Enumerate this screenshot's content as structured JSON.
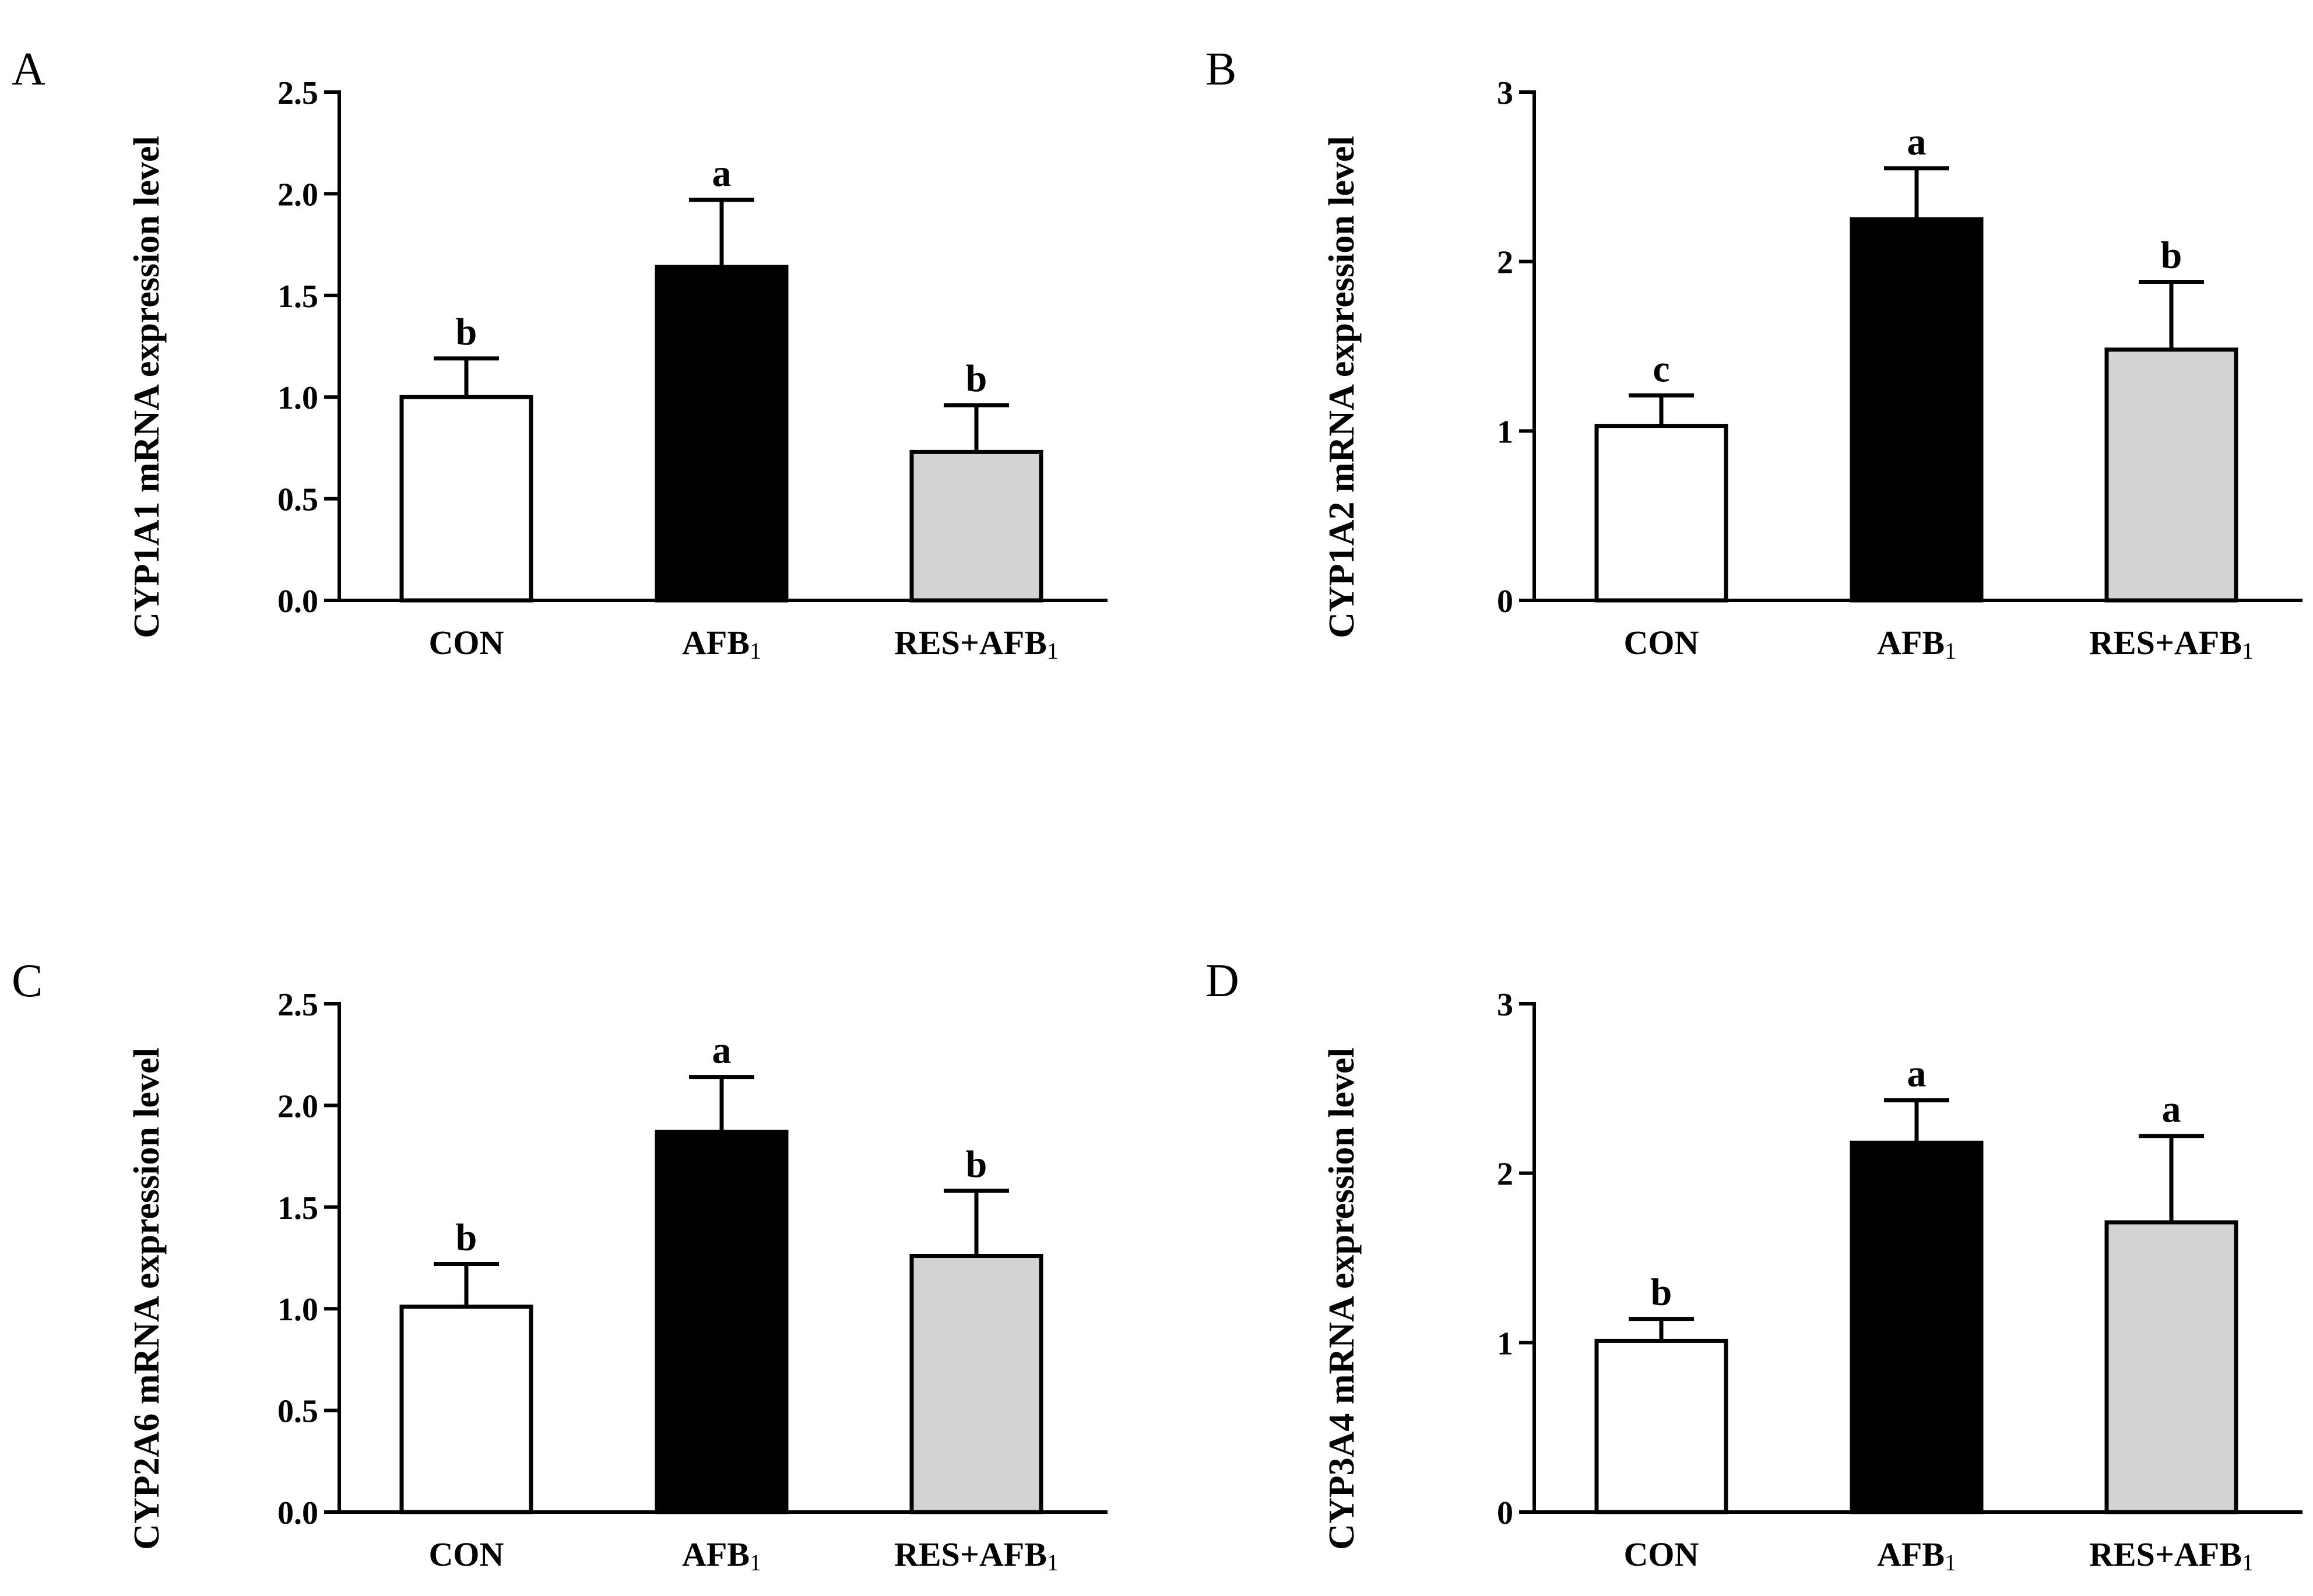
{
  "figure": {
    "panels": [
      "A",
      "B",
      "C",
      "D"
    ]
  },
  "chart_data": [
    {
      "panel": "A",
      "type": "bar",
      "ylabel": "CYP1A1 mRNA expression level",
      "ylim": [
        0,
        2.5
      ],
      "yticks": [
        0.0,
        0.5,
        1.0,
        1.5,
        2.0,
        2.5
      ],
      "ytick_labels": [
        "0.0",
        "0.5",
        "1.0",
        "1.5",
        "2.0",
        "2.5"
      ],
      "categories": [
        {
          "main": "CON",
          "sub": ""
        },
        {
          "main": "AFB",
          "sub": "1"
        },
        {
          "main": "RES+AFB",
          "sub": "1"
        }
      ],
      "values": [
        1.0,
        1.64,
        0.73
      ],
      "errors": [
        0.19,
        0.33,
        0.23
      ],
      "significance": [
        "b",
        "a",
        "b"
      ],
      "colors": [
        "#ffffff",
        "#000000",
        "#d3d3d3"
      ]
    },
    {
      "panel": "B",
      "type": "bar",
      "ylabel": "CYP1A2 mRNA expression level",
      "ylim": [
        0,
        3
      ],
      "yticks": [
        0,
        1,
        2,
        3
      ],
      "ytick_labels": [
        "0",
        "1",
        "2",
        "3"
      ],
      "categories": [
        {
          "main": "CON",
          "sub": ""
        },
        {
          "main": "AFB",
          "sub": "1"
        },
        {
          "main": "RES+AFB",
          "sub": "1"
        }
      ],
      "values": [
        1.03,
        2.25,
        1.48
      ],
      "errors": [
        0.18,
        0.3,
        0.4
      ],
      "significance": [
        "c",
        "a",
        "b"
      ],
      "colors": [
        "#ffffff",
        "#000000",
        "#d3d3d3"
      ]
    },
    {
      "panel": "C",
      "type": "bar",
      "ylabel": "CYP2A6 mRNA expression level",
      "ylim": [
        0,
        2.5
      ],
      "yticks": [
        0.0,
        0.5,
        1.0,
        1.5,
        2.0,
        2.5
      ],
      "ytick_labels": [
        "0.0",
        "0.5",
        "1.0",
        "1.5",
        "2.0",
        "2.5"
      ],
      "categories": [
        {
          "main": "CON",
          "sub": ""
        },
        {
          "main": "AFB",
          "sub": "1"
        },
        {
          "main": "RES+AFB",
          "sub": "1"
        }
      ],
      "values": [
        1.01,
        1.87,
        1.26
      ],
      "errors": [
        0.21,
        0.27,
        0.32
      ],
      "significance": [
        "b",
        "a",
        "b"
      ],
      "colors": [
        "#ffffff",
        "#000000",
        "#d3d3d3"
      ]
    },
    {
      "panel": "D",
      "type": "bar",
      "ylabel": "CYP3A4 mRNA expression level",
      "ylim": [
        0,
        3
      ],
      "yticks": [
        0,
        1,
        2,
        3
      ],
      "ytick_labels": [
        "0",
        "1",
        "2",
        "3"
      ],
      "categories": [
        {
          "main": "CON",
          "sub": ""
        },
        {
          "main": "AFB",
          "sub": "1"
        },
        {
          "main": "RES+AFB",
          "sub": "1"
        }
      ],
      "values": [
        1.01,
        2.18,
        1.71
      ],
      "errors": [
        0.13,
        0.25,
        0.51
      ],
      "significance": [
        "b",
        "a",
        "a"
      ],
      "colors": [
        "#ffffff",
        "#000000",
        "#d3d3d3"
      ]
    }
  ]
}
